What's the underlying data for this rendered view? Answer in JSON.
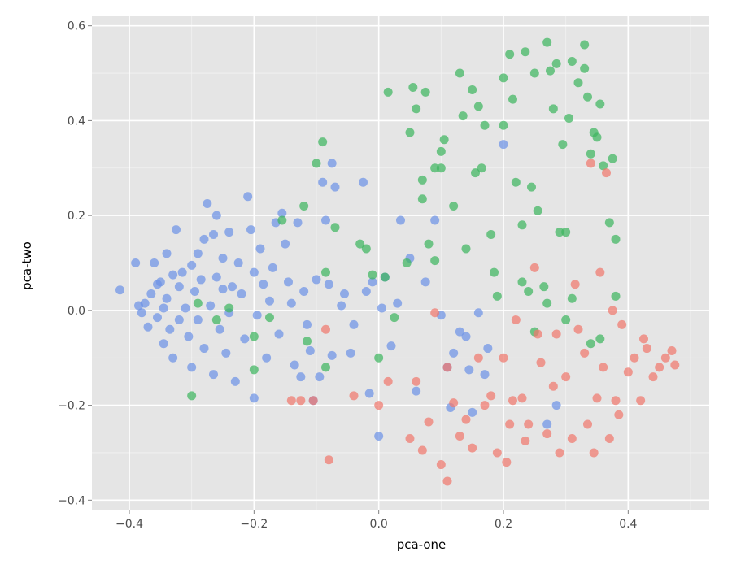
{
  "chart_data": {
    "type": "scatter",
    "xlabel": "pca-one",
    "ylabel": "pca-two",
    "xlim": [
      -0.46,
      0.53
    ],
    "ylim": [
      -0.42,
      0.62
    ],
    "x_ticks": [
      -0.4,
      -0.2,
      0.0,
      0.2,
      0.4
    ],
    "y_ticks": [
      -0.4,
      -0.2,
      0.0,
      0.2,
      0.4,
      0.6
    ],
    "x_tick_labels": [
      "−0.4",
      "−0.2",
      "0.0",
      "0.2",
      "0.4"
    ],
    "y_tick_labels": [
      "−0.4",
      "−0.2",
      "0.0",
      "0.2",
      "0.4",
      "0.6"
    ],
    "grid": true,
    "legend": "none",
    "background": "#e5e5e5",
    "series": [
      {
        "color": "#6d93e6",
        "points": [
          [
            -0.415,
            0.043
          ],
          [
            -0.39,
            0.1
          ],
          [
            -0.385,
            0.01
          ],
          [
            -0.38,
            -0.005
          ],
          [
            -0.375,
            0.015
          ],
          [
            -0.37,
            -0.035
          ],
          [
            -0.365,
            0.035
          ],
          [
            -0.36,
            0.1
          ],
          [
            -0.355,
            0.055
          ],
          [
            -0.355,
            -0.015
          ],
          [
            -0.35,
            0.06
          ],
          [
            -0.345,
            0.005
          ],
          [
            -0.345,
            -0.07
          ],
          [
            -0.34,
            0.12
          ],
          [
            -0.34,
            0.025
          ],
          [
            -0.335,
            -0.04
          ],
          [
            -0.33,
            0.075
          ],
          [
            -0.33,
            -0.1
          ],
          [
            -0.325,
            0.17
          ],
          [
            -0.32,
            0.05
          ],
          [
            -0.32,
            -0.02
          ],
          [
            -0.315,
            0.08
          ],
          [
            -0.31,
            0.005
          ],
          [
            -0.305,
            -0.055
          ],
          [
            -0.3,
            0.095
          ],
          [
            -0.3,
            -0.12
          ],
          [
            -0.295,
            0.04
          ],
          [
            -0.29,
            0.12
          ],
          [
            -0.29,
            -0.02
          ],
          [
            -0.285,
            0.065
          ],
          [
            -0.28,
            -0.08
          ],
          [
            -0.28,
            0.15
          ],
          [
            -0.275,
            0.225
          ],
          [
            -0.27,
            0.01
          ],
          [
            -0.265,
            0.16
          ],
          [
            -0.265,
            -0.135
          ],
          [
            -0.26,
            0.07
          ],
          [
            -0.26,
            0.2
          ],
          [
            -0.255,
            -0.04
          ],
          [
            -0.25,
            0.11
          ],
          [
            -0.25,
            0.045
          ],
          [
            -0.245,
            -0.09
          ],
          [
            -0.24,
            0.165
          ],
          [
            -0.24,
            -0.005
          ],
          [
            -0.235,
            0.05
          ],
          [
            -0.23,
            -0.15
          ],
          [
            -0.225,
            0.1
          ],
          [
            -0.22,
            0.035
          ],
          [
            -0.215,
            -0.06
          ],
          [
            -0.21,
            0.24
          ],
          [
            -0.205,
            0.17
          ],
          [
            -0.2,
            -0.185
          ],
          [
            -0.2,
            0.08
          ],
          [
            -0.195,
            -0.01
          ],
          [
            -0.19,
            0.13
          ],
          [
            -0.185,
            0.055
          ],
          [
            -0.18,
            -0.1
          ],
          [
            -0.175,
            0.02
          ],
          [
            -0.17,
            0.09
          ],
          [
            -0.165,
            0.185
          ],
          [
            -0.16,
            -0.05
          ],
          [
            -0.155,
            0.205
          ],
          [
            -0.15,
            0.14
          ],
          [
            -0.145,
            0.06
          ],
          [
            -0.14,
            0.015
          ],
          [
            -0.135,
            -0.115
          ],
          [
            -0.13,
            0.185
          ],
          [
            -0.125,
            -0.14
          ],
          [
            -0.12,
            0.04
          ],
          [
            -0.115,
            -0.03
          ],
          [
            -0.11,
            -0.085
          ],
          [
            -0.105,
            -0.19
          ],
          [
            -0.1,
            0.065
          ],
          [
            -0.095,
            -0.14
          ],
          [
            -0.09,
            0.27
          ],
          [
            -0.085,
            0.19
          ],
          [
            -0.08,
            0.055
          ],
          [
            -0.075,
            0.31
          ],
          [
            -0.075,
            -0.095
          ],
          [
            -0.07,
            0.26
          ],
          [
            -0.06,
            0.01
          ],
          [
            -0.055,
            0.035
          ],
          [
            -0.045,
            -0.09
          ],
          [
            -0.04,
            -0.03
          ],
          [
            -0.025,
            0.27
          ],
          [
            -0.02,
            0.04
          ],
          [
            -0.015,
            -0.175
          ],
          [
            -0.01,
            0.06
          ],
          [
            0.0,
            -0.265
          ],
          [
            0.005,
            0.005
          ],
          [
            0.01,
            0.07
          ],
          [
            0.02,
            -0.075
          ],
          [
            0.03,
            0.015
          ],
          [
            0.035,
            0.19
          ],
          [
            0.05,
            0.11
          ],
          [
            0.06,
            -0.17
          ],
          [
            0.075,
            0.06
          ],
          [
            0.09,
            0.19
          ],
          [
            0.1,
            -0.01
          ],
          [
            0.11,
            -0.12
          ],
          [
            0.115,
            -0.205
          ],
          [
            0.12,
            -0.09
          ],
          [
            0.13,
            -0.045
          ],
          [
            0.14,
            -0.055
          ],
          [
            0.145,
            -0.125
          ],
          [
            0.15,
            -0.215
          ],
          [
            0.16,
            -0.005
          ],
          [
            0.17,
            -0.135
          ],
          [
            0.175,
            -0.08
          ],
          [
            0.2,
            0.35
          ],
          [
            0.27,
            -0.24
          ],
          [
            0.285,
            -0.2
          ]
        ]
      },
      {
        "color": "#3fb560",
        "points": [
          [
            -0.3,
            -0.18
          ],
          [
            -0.29,
            0.015
          ],
          [
            -0.26,
            -0.02
          ],
          [
            -0.24,
            0.005
          ],
          [
            -0.2,
            -0.055
          ],
          [
            -0.2,
            -0.125
          ],
          [
            -0.175,
            -0.015
          ],
          [
            -0.155,
            0.19
          ],
          [
            -0.12,
            0.22
          ],
          [
            -0.115,
            -0.065
          ],
          [
            -0.1,
            0.31
          ],
          [
            -0.09,
            0.355
          ],
          [
            -0.085,
            0.08
          ],
          [
            -0.085,
            -0.12
          ],
          [
            -0.07,
            0.175
          ],
          [
            -0.03,
            0.14
          ],
          [
            -0.02,
            0.13
          ],
          [
            -0.01,
            0.075
          ],
          [
            0.0,
            -0.1
          ],
          [
            0.01,
            0.07
          ],
          [
            0.015,
            0.46
          ],
          [
            0.025,
            -0.015
          ],
          [
            0.045,
            0.1
          ],
          [
            0.05,
            0.375
          ],
          [
            0.055,
            0.47
          ],
          [
            0.06,
            0.425
          ],
          [
            0.07,
            0.235
          ],
          [
            0.07,
            0.275
          ],
          [
            0.075,
            0.46
          ],
          [
            0.08,
            0.14
          ],
          [
            0.09,
            0.3
          ],
          [
            0.09,
            0.105
          ],
          [
            0.1,
            0.3
          ],
          [
            0.1,
            0.335
          ],
          [
            0.105,
            0.36
          ],
          [
            0.12,
            0.22
          ],
          [
            0.13,
            0.5
          ],
          [
            0.135,
            0.41
          ],
          [
            0.14,
            0.13
          ],
          [
            0.15,
            0.465
          ],
          [
            0.155,
            0.29
          ],
          [
            0.16,
            0.43
          ],
          [
            0.165,
            0.3
          ],
          [
            0.17,
            0.39
          ],
          [
            0.18,
            0.16
          ],
          [
            0.185,
            0.08
          ],
          [
            0.19,
            0.03
          ],
          [
            0.2,
            0.39
          ],
          [
            0.2,
            0.49
          ],
          [
            0.21,
            0.54
          ],
          [
            0.215,
            0.445
          ],
          [
            0.22,
            0.27
          ],
          [
            0.23,
            0.18
          ],
          [
            0.235,
            0.545
          ],
          [
            0.245,
            0.26
          ],
          [
            0.25,
            0.5
          ],
          [
            0.255,
            0.21
          ],
          [
            0.265,
            0.05
          ],
          [
            0.27,
            0.565
          ],
          [
            0.275,
            0.505
          ],
          [
            0.28,
            0.425
          ],
          [
            0.285,
            0.52
          ],
          [
            0.29,
            0.165
          ],
          [
            0.295,
            0.35
          ],
          [
            0.3,
            0.165
          ],
          [
            0.305,
            0.405
          ],
          [
            0.31,
            0.525
          ],
          [
            0.32,
            0.48
          ],
          [
            0.33,
            0.56
          ],
          [
            0.33,
            0.51
          ],
          [
            0.335,
            0.45
          ],
          [
            0.34,
            0.33
          ],
          [
            0.345,
            0.375
          ],
          [
            0.35,
            0.365
          ],
          [
            0.355,
            0.435
          ],
          [
            0.36,
            0.305
          ],
          [
            0.37,
            0.185
          ],
          [
            0.375,
            0.32
          ],
          [
            0.38,
            0.15
          ],
          [
            0.38,
            0.03
          ],
          [
            0.25,
            -0.045
          ],
          [
            0.27,
            0.015
          ],
          [
            0.3,
            -0.02
          ],
          [
            0.31,
            0.025
          ],
          [
            0.34,
            -0.07
          ],
          [
            0.355,
            -0.06
          ],
          [
            0.24,
            0.04
          ],
          [
            0.23,
            0.06
          ]
        ]
      },
      {
        "color": "#f0786e",
        "points": [
          [
            -0.14,
            -0.19
          ],
          [
            -0.125,
            -0.19
          ],
          [
            -0.105,
            -0.19
          ],
          [
            -0.085,
            -0.04
          ],
          [
            -0.08,
            -0.315
          ],
          [
            -0.04,
            -0.18
          ],
          [
            0.0,
            -0.2
          ],
          [
            0.015,
            -0.15
          ],
          [
            0.05,
            -0.27
          ],
          [
            0.06,
            -0.15
          ],
          [
            0.07,
            -0.295
          ],
          [
            0.08,
            -0.235
          ],
          [
            0.09,
            -0.005
          ],
          [
            0.1,
            -0.325
          ],
          [
            0.11,
            -0.36
          ],
          [
            0.11,
            -0.12
          ],
          [
            0.12,
            -0.195
          ],
          [
            0.13,
            -0.265
          ],
          [
            0.14,
            -0.23
          ],
          [
            0.15,
            -0.29
          ],
          [
            0.16,
            -0.1
          ],
          [
            0.17,
            -0.2
          ],
          [
            0.18,
            -0.18
          ],
          [
            0.19,
            -0.3
          ],
          [
            0.2,
            -0.1
          ],
          [
            0.205,
            -0.32
          ],
          [
            0.21,
            -0.24
          ],
          [
            0.215,
            -0.19
          ],
          [
            0.22,
            -0.02
          ],
          [
            0.23,
            -0.185
          ],
          [
            0.235,
            -0.275
          ],
          [
            0.24,
            -0.24
          ],
          [
            0.25,
            0.09
          ],
          [
            0.255,
            -0.05
          ],
          [
            0.26,
            -0.11
          ],
          [
            0.27,
            -0.26
          ],
          [
            0.28,
            -0.16
          ],
          [
            0.285,
            -0.05
          ],
          [
            0.29,
            -0.3
          ],
          [
            0.3,
            -0.14
          ],
          [
            0.31,
            -0.27
          ],
          [
            0.315,
            0.055
          ],
          [
            0.32,
            -0.04
          ],
          [
            0.33,
            -0.09
          ],
          [
            0.335,
            -0.24
          ],
          [
            0.34,
            0.31
          ],
          [
            0.345,
            -0.3
          ],
          [
            0.35,
            -0.185
          ],
          [
            0.355,
            0.08
          ],
          [
            0.36,
            -0.12
          ],
          [
            0.365,
            0.29
          ],
          [
            0.37,
            -0.27
          ],
          [
            0.375,
            0.0
          ],
          [
            0.38,
            -0.19
          ],
          [
            0.385,
            -0.22
          ],
          [
            0.39,
            -0.03
          ],
          [
            0.4,
            -0.13
          ],
          [
            0.41,
            -0.1
          ],
          [
            0.42,
            -0.19
          ],
          [
            0.425,
            -0.06
          ],
          [
            0.43,
            -0.08
          ],
          [
            0.44,
            -0.14
          ],
          [
            0.45,
            -0.12
          ],
          [
            0.46,
            -0.1
          ],
          [
            0.47,
            -0.085
          ],
          [
            0.475,
            -0.115
          ]
        ]
      }
    ]
  }
}
